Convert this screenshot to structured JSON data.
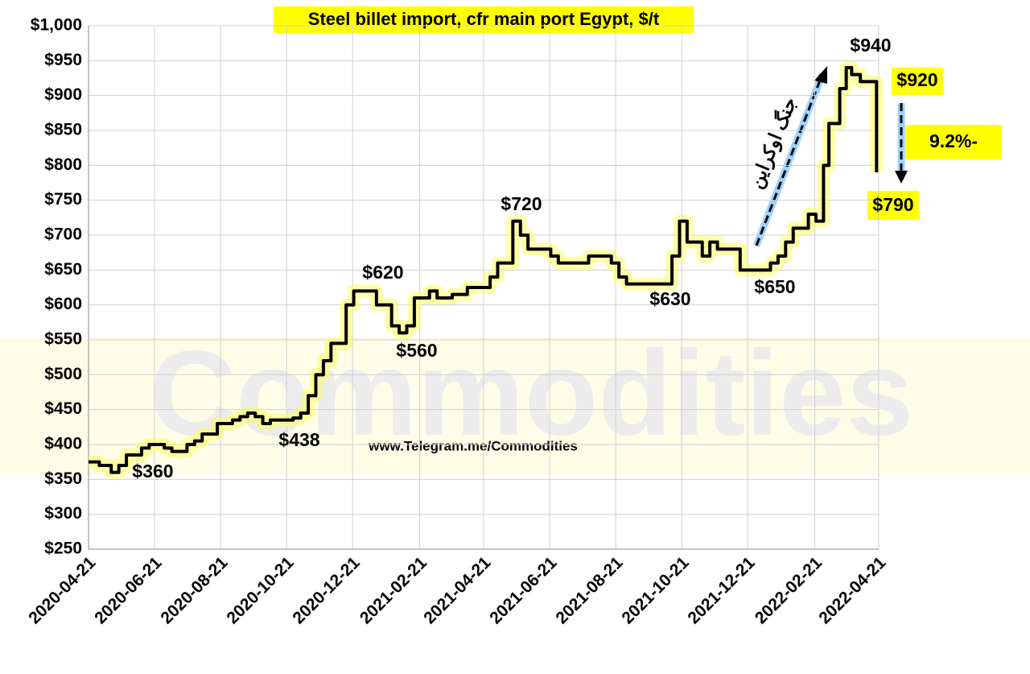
{
  "chart_data": {
    "type": "step-line",
    "title": "Steel billet import, cfr main port Egypt, $/t",
    "subtitle": "www.Telegram.me/Commodities",
    "watermark": "Commodities",
    "x": [
      "2020-04-21",
      "2020-05-01",
      "2020-05-12",
      "2020-05-19",
      "2020-05-26",
      "2020-06-09",
      "2020-06-16",
      "2020-06-30",
      "2020-07-07",
      "2020-07-21",
      "2020-07-28",
      "2020-08-04",
      "2020-08-18",
      "2020-09-01",
      "2020-09-08",
      "2020-09-15",
      "2020-09-22",
      "2020-09-29",
      "2020-10-06",
      "2020-10-27",
      "2020-11-03",
      "2020-11-10",
      "2020-11-17",
      "2020-11-24",
      "2020-12-01",
      "2020-12-15",
      "2020-12-22",
      "2021-01-12",
      "2021-01-26",
      "2021-02-02",
      "2021-02-09",
      "2021-02-16",
      "2021-03-02",
      "2021-03-09",
      "2021-03-23",
      "2021-04-06",
      "2021-04-27",
      "2021-05-04",
      "2021-05-18",
      "2021-05-25",
      "2021-06-01",
      "2021-06-22",
      "2021-06-29",
      "2021-07-27",
      "2021-08-17",
      "2021-08-24",
      "2021-08-31",
      "2021-10-12",
      "2021-10-19",
      "2021-10-26",
      "2021-11-09",
      "2021-11-16",
      "2021-11-23",
      "2021-12-14",
      "2022-01-11",
      "2022-01-18",
      "2022-01-25",
      "2022-02-01",
      "2022-02-15",
      "2022-02-22",
      "2022-03-01",
      "2022-03-06",
      "2022-03-16",
      "2022-03-22",
      "2022-03-27",
      "2022-04-04",
      "2022-04-19"
    ],
    "series": [
      {
        "name": "Steel billet",
        "color": "#000000",
        "values": [
          375,
          370,
          360,
          370,
          385,
          395,
          400,
          395,
          390,
          400,
          405,
          415,
          430,
          435,
          440,
          445,
          440,
          430,
          435,
          438,
          445,
          470,
          500,
          520,
          545,
          600,
          620,
          600,
          570,
          560,
          570,
          610,
          620,
          610,
          615,
          625,
          640,
          660,
          720,
          700,
          680,
          670,
          660,
          670,
          660,
          640,
          630,
          670,
          720,
          690,
          670,
          690,
          680,
          650,
          660,
          670,
          690,
          710,
          730,
          720,
          800,
          860,
          910,
          940,
          930,
          920,
          790
        ]
      }
    ],
    "xlim": [
      "2020-04-21",
      "2022-04-21"
    ],
    "xticks": [
      "2020-04-21",
      "2020-06-21",
      "2020-08-21",
      "2020-10-21",
      "2020-12-21",
      "2021-02-21",
      "2021-04-21",
      "2021-06-21",
      "2021-08-21",
      "2021-10-21",
      "2021-12-21",
      "2022-02-21",
      "2022-04-21"
    ],
    "ylim": [
      250,
      1000
    ],
    "yticks": [
      {
        "value": 250,
        "label": "$250"
      },
      {
        "value": 300,
        "label": "$300"
      },
      {
        "value": 350,
        "label": "$350"
      },
      {
        "value": 400,
        "label": "$400"
      },
      {
        "value": 450,
        "label": "$450"
      },
      {
        "value": 500,
        "label": "$500"
      },
      {
        "value": 550,
        "label": "$550"
      },
      {
        "value": 600,
        "label": "$600"
      },
      {
        "value": 650,
        "label": "$650"
      },
      {
        "value": 700,
        "label": "$700"
      },
      {
        "value": 750,
        "label": "$750"
      },
      {
        "value": 800,
        "label": "$800"
      },
      {
        "value": 850,
        "label": "$850"
      },
      {
        "value": 900,
        "label": "$900"
      },
      {
        "value": 950,
        "label": "$950"
      },
      {
        "value": 1000,
        "label": "$1,000"
      }
    ],
    "grid": true,
    "annotations": [
      "$360",
      "$438",
      "$620",
      "$560",
      "$720",
      "$630",
      "$650",
      "$940",
      "$920",
      "$790",
      "9.2%-",
      "جنگ اوکراین"
    ]
  }
}
